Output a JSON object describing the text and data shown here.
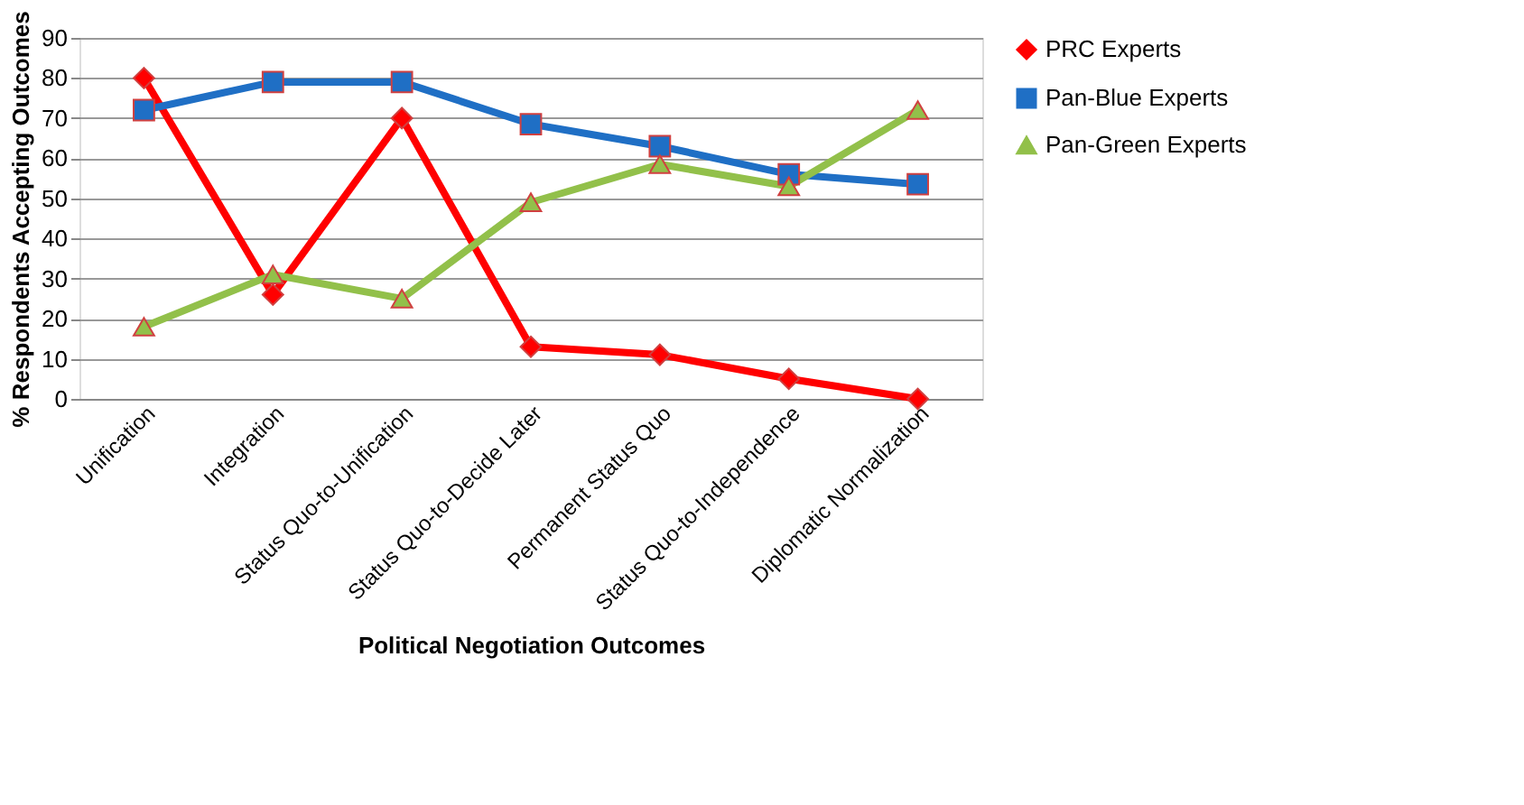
{
  "chart_data": {
    "type": "line",
    "xlabel": "Political Negotiation Outcomes",
    "ylabel": "% Respondents Accepting Outcomes",
    "categories": [
      "Unification",
      "Integration",
      "Status Quo-to-Unification",
      "Status Quo-to-Decide Later",
      "Permanent Status Quo",
      "Status Quo-to-Independence",
      "Diplomatic Normalization"
    ],
    "series": [
      {
        "name": "PRC Experts",
        "color": "#ff0000",
        "marker": "diamond",
        "values": [
          80,
          26,
          70,
          13,
          11,
          5,
          0
        ]
      },
      {
        "name": "Pan-Blue Experts",
        "color": "#1f6fc5",
        "marker": "square",
        "values": [
          72,
          79,
          79,
          68.5,
          63,
          56,
          53.5
        ]
      },
      {
        "name": "Pan-Green Experts",
        "color": "#92c04a",
        "marker": "triangle",
        "values": [
          18,
          31,
          25,
          49,
          58.5,
          53,
          72
        ]
      }
    ],
    "ylim": [
      0,
      90
    ],
    "yticks": [
      0,
      10,
      20,
      30,
      40,
      50,
      60,
      70,
      80,
      90
    ],
    "grid": "y",
    "legend": "right",
    "line_style": "solid"
  }
}
